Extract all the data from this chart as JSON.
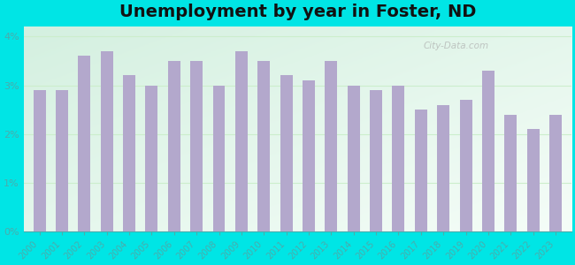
{
  "title": "Unemployment by year in Foster, ND",
  "years": [
    2000,
    2001,
    2002,
    2003,
    2004,
    2005,
    2006,
    2007,
    2008,
    2009,
    2010,
    2011,
    2012,
    2013,
    2014,
    2015,
    2016,
    2017,
    2018,
    2019,
    2020,
    2021,
    2022,
    2023
  ],
  "values": [
    2.9,
    2.9,
    3.6,
    3.7,
    3.2,
    3.0,
    3.5,
    3.5,
    3.0,
    3.7,
    3.5,
    3.2,
    3.1,
    3.5,
    3.0,
    2.9,
    3.0,
    2.5,
    2.6,
    2.7,
    3.3,
    2.4,
    2.1,
    2.4
  ],
  "bar_color": "#b3a8cc",
  "outer_bg": "#00e5e5",
  "plot_bg": "#e8f5ee",
  "ylim": [
    0,
    4.2
  ],
  "yticks": [
    0,
    1,
    2,
    3,
    4
  ],
  "ytick_labels": [
    "0%",
    "1%",
    "2%",
    "3%",
    "4%"
  ],
  "tick_color": "#4aacac",
  "title_fontsize": 14,
  "watermark_text": "City-Data.com",
  "grid_color": "#cceecc"
}
